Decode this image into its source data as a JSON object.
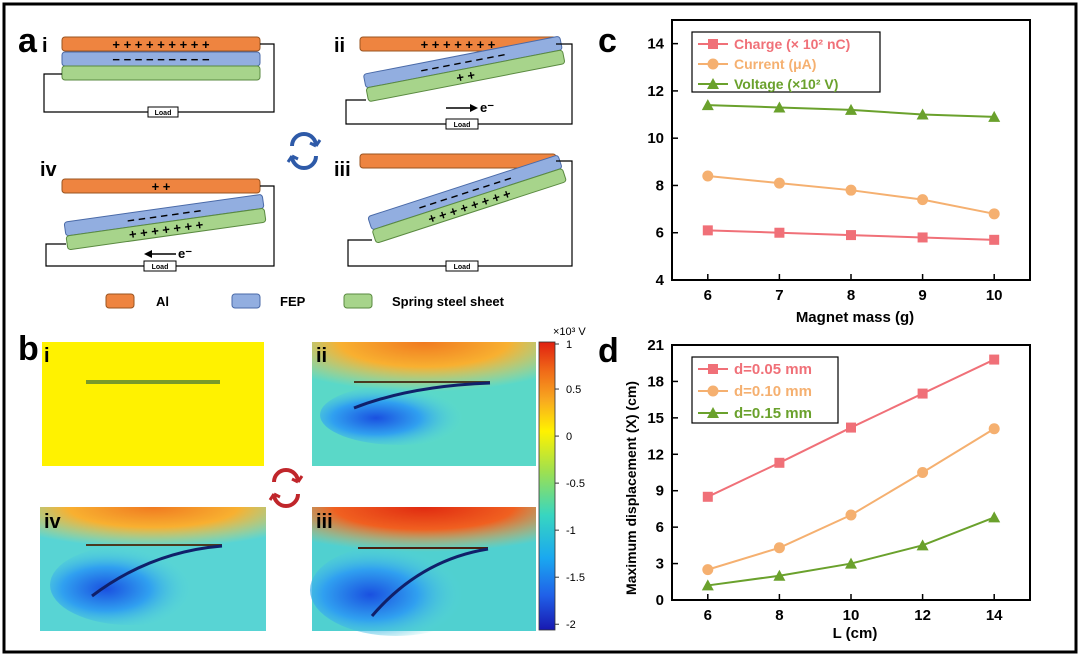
{
  "panel_letters": {
    "a": "a",
    "b": "b",
    "c": "c",
    "d": "d"
  },
  "panel_a": {
    "sub_labels": [
      "i",
      "ii",
      "iii",
      "iv"
    ],
    "load_label": "Load",
    "electron_label": "e⁻",
    "charges": {
      "i_al": "+ + + + + + + + +",
      "i_fep": "− − − − − − − − −",
      "ii_al": "+ + + + + + +",
      "ii_fep": "− − − − − − − −",
      "ii_steel": "+ +",
      "iii_fep": "− − − − − − − − −",
      "iii_steel": "+ + + + + + + +",
      "iv_al": "+ +",
      "iv_fep": "− − − − − − −",
      "iv_steel": "+ + + + + + +"
    },
    "legend": [
      {
        "label": "Al",
        "color": "#ee8440"
      },
      {
        "label": "FEP",
        "color": "#92aee0"
      },
      {
        "label": "Spring steel sheet",
        "color": "#a7d48b"
      }
    ],
    "colors": {
      "al": "#ee8440",
      "fep": "#92aee0",
      "steel": "#a7d48b",
      "cycle": "#2e5aa8"
    }
  },
  "panel_b": {
    "sub_labels": [
      "i",
      "ii",
      "iii",
      "iv"
    ],
    "colorbar_unit": "×10³ V",
    "colorbar_ticks": [
      "1",
      "0.5",
      "0",
      "-0.5",
      "-1",
      "-1.5",
      "-2"
    ],
    "colors": {
      "cycle": "#c0262b"
    }
  },
  "chart_data": [
    {
      "type": "line",
      "panel": "c",
      "xlabel": "Magnet mass (g)",
      "ylabel": "",
      "x": [
        6,
        7,
        8,
        9,
        10
      ],
      "xlim": [
        5.5,
        10.5
      ],
      "ylim": [
        4,
        15
      ],
      "yticks": [
        4,
        6,
        8,
        10,
        12,
        14
      ],
      "xticks": [
        6,
        7,
        8,
        9,
        10
      ],
      "legend_position": "top-left",
      "series": [
        {
          "name": "Charge (× 10² nC)",
          "marker": "square",
          "color": "#f07078",
          "values": [
            6.1,
            6.0,
            5.9,
            5.8,
            5.7
          ]
        },
        {
          "name": "Current (μA)",
          "marker": "circle",
          "color": "#f5b070",
          "values": [
            8.4,
            8.1,
            7.8,
            7.4,
            6.8
          ]
        },
        {
          "name": "Voltage (×10² V)",
          "marker": "triangle",
          "color": "#6aa12c",
          "values": [
            11.4,
            11.3,
            11.2,
            11.0,
            10.9
          ]
        }
      ]
    },
    {
      "type": "line",
      "panel": "d",
      "xlabel": "L (cm)",
      "ylabel": "Maximum displacement (X) (cm)",
      "x": [
        6,
        8,
        10,
        12,
        14
      ],
      "xlim": [
        5,
        15
      ],
      "ylim": [
        0,
        21
      ],
      "yticks": [
        0,
        3,
        6,
        9,
        12,
        15,
        18,
        21
      ],
      "xticks": [
        6,
        8,
        10,
        12,
        14
      ],
      "legend_position": "top-left",
      "series": [
        {
          "name": "d=0.05 mm",
          "marker": "square",
          "color": "#f07078",
          "values": [
            8.5,
            11.3,
            14.2,
            17.0,
            19.8
          ]
        },
        {
          "name": "d=0.10 mm",
          "marker": "circle",
          "color": "#f5b070",
          "values": [
            2.5,
            4.3,
            7.0,
            10.5,
            14.1
          ]
        },
        {
          "name": "d=0.15 mm",
          "marker": "triangle",
          "color": "#6aa12c",
          "values": [
            1.2,
            2.0,
            3.0,
            4.5,
            6.8
          ]
        }
      ]
    }
  ]
}
